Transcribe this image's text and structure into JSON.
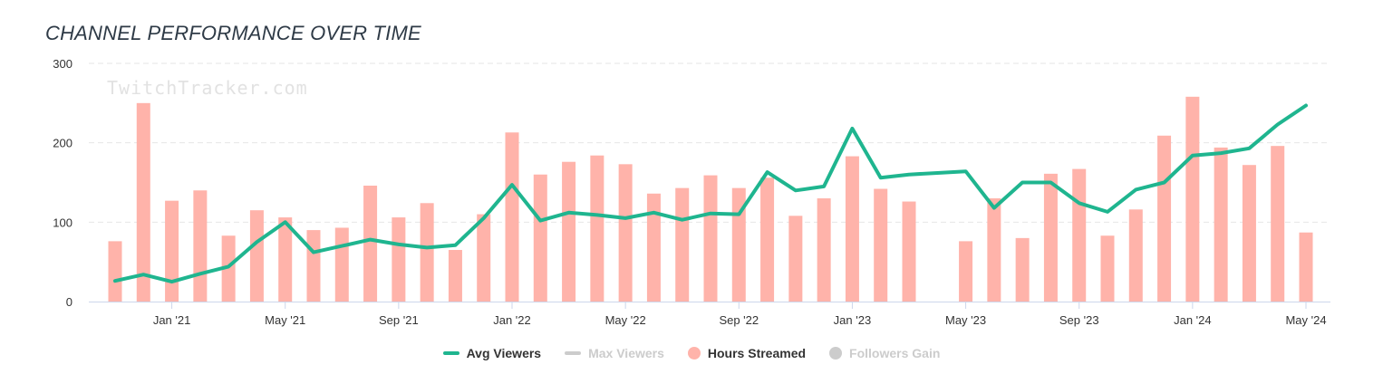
{
  "title": "CHANNEL PERFORMANCE OVER TIME",
  "watermark": "TwitchTracker.com",
  "legend": [
    {
      "key": "avg",
      "label": "Avg Viewers",
      "color": "#1fb58f",
      "shape": "line",
      "active": true
    },
    {
      "key": "max",
      "label": "Max Viewers",
      "color": "#cccccc",
      "shape": "line",
      "active": false
    },
    {
      "key": "hours",
      "label": "Hours Streamed",
      "color": "#ffb3aa",
      "shape": "dot",
      "active": true
    },
    {
      "key": "followers",
      "label": "Followers Gain",
      "color": "#cccccc",
      "shape": "dot",
      "active": false
    }
  ],
  "colors": {
    "avg_line": "#1fb58f",
    "bars": "#ffb3aa",
    "grid": "#e6e6e6",
    "axis_text": "#333333"
  },
  "chart_data": {
    "type": "bar",
    "title": "CHANNEL PERFORMANCE OVER TIME",
    "x_months": [
      "2020-11",
      "2020-12",
      "2021-01",
      "2021-02",
      "2021-03",
      "2021-04",
      "2021-05",
      "2021-06",
      "2021-07",
      "2021-08",
      "2021-09",
      "2021-10",
      "2021-11",
      "2021-12",
      "2022-01",
      "2022-02",
      "2022-03",
      "2022-04",
      "2022-05",
      "2022-06",
      "2022-07",
      "2022-08",
      "2022-09",
      "2022-10",
      "2022-11",
      "2022-12",
      "2023-01",
      "2023-02",
      "2023-03",
      "2023-04",
      "2023-05",
      "2023-06",
      "2023-07",
      "2023-08",
      "2023-09",
      "2023-10",
      "2023-11",
      "2023-12",
      "2024-01",
      "2024-02",
      "2024-03",
      "2024-04",
      "2024-05"
    ],
    "x_tick_labels": [
      "Jan '21",
      "May '21",
      "Sep '21",
      "Jan '22",
      "May '22",
      "Sep '22",
      "Jan '23",
      "May '23",
      "Sep '23",
      "Jan '24",
      "May '24"
    ],
    "x_tick_months": [
      "2021-01",
      "2021-05",
      "2021-09",
      "2022-01",
      "2022-05",
      "2022-09",
      "2023-01",
      "2023-05",
      "2023-09",
      "2024-01",
      "2024-05"
    ],
    "y_ticks": [
      0,
      100,
      200,
      300
    ],
    "ylim": [
      0,
      300
    ],
    "grid": true,
    "legend_position": "bottom",
    "series": [
      {
        "name": "Hours Streamed",
        "kind": "bar",
        "values": [
          76,
          250,
          127,
          140,
          83,
          115,
          106,
          90,
          93,
          146,
          106,
          124,
          65,
          110,
          213,
          160,
          176,
          184,
          173,
          136,
          143,
          159,
          143,
          156,
          108,
          130,
          183,
          142,
          126,
          null,
          76,
          130,
          80,
          161,
          167,
          83,
          116,
          209,
          258,
          194,
          172,
          196,
          87
        ]
      },
      {
        "name": "Avg Viewers",
        "kind": "line",
        "values": [
          26,
          34,
          25,
          35,
          44,
          75,
          100,
          62,
          70,
          78,
          72,
          68,
          71,
          105,
          147,
          102,
          112,
          109,
          105,
          112,
          103,
          111,
          110,
          163,
          140,
          145,
          218,
          156,
          160,
          162,
          164,
          118,
          150,
          150,
          124,
          113,
          141,
          150,
          184,
          187,
          193,
          223,
          247
        ]
      }
    ]
  }
}
